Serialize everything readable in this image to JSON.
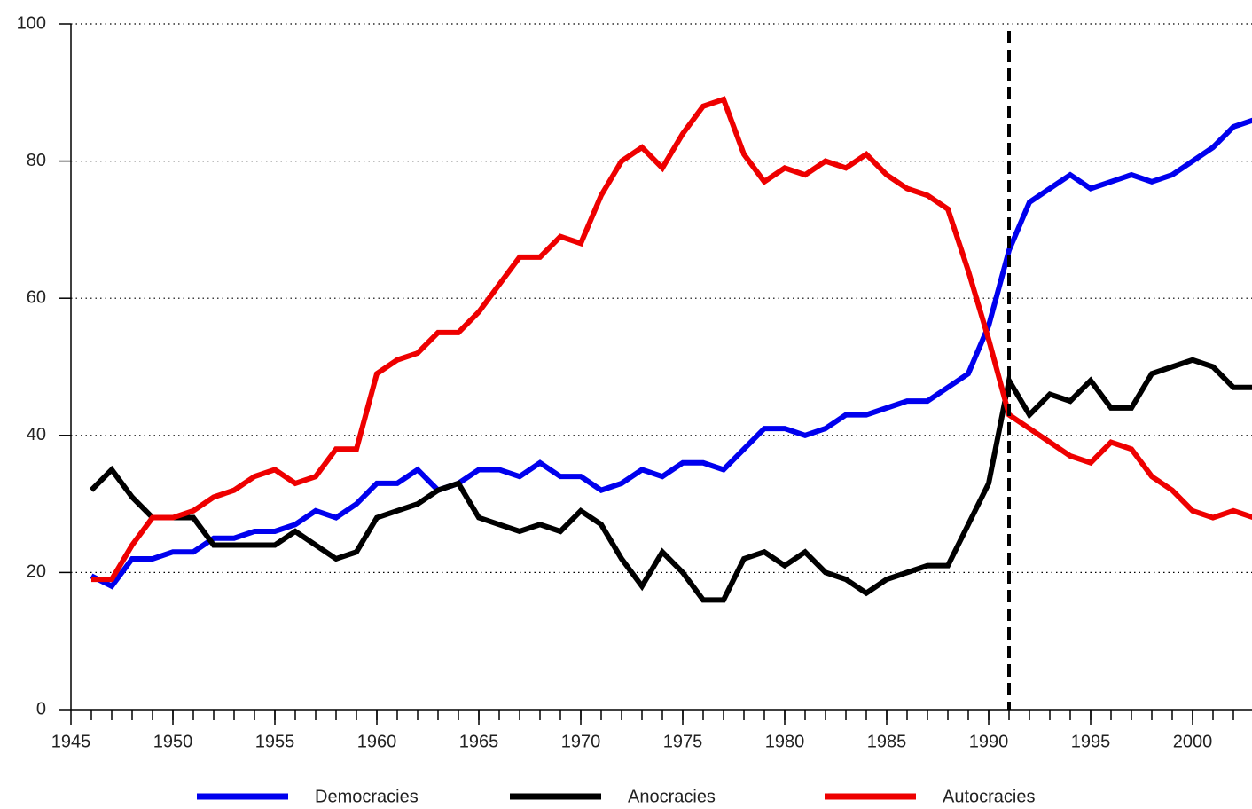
{
  "chart_data": {
    "type": "line",
    "x": [
      1946,
      1947,
      1948,
      1949,
      1950,
      1951,
      1952,
      1953,
      1954,
      1955,
      1956,
      1957,
      1958,
      1959,
      1960,
      1961,
      1962,
      1963,
      1964,
      1965,
      1966,
      1967,
      1968,
      1969,
      1970,
      1971,
      1972,
      1973,
      1974,
      1975,
      1976,
      1977,
      1978,
      1979,
      1980,
      1981,
      1982,
      1983,
      1984,
      1985,
      1986,
      1987,
      1988,
      1989,
      1990,
      1991,
      1992,
      1993,
      1994,
      1995,
      1996,
      1997,
      1998,
      1999,
      2000,
      2001,
      2002,
      2003
    ],
    "series": [
      {
        "name": "Democracies",
        "color": "#0000ee",
        "values": [
          19.5,
          18,
          22,
          22,
          23,
          23,
          25,
          25,
          26,
          26,
          27,
          29,
          28,
          30,
          33,
          33,
          35,
          32,
          33,
          35,
          35,
          34,
          36,
          34,
          34,
          32,
          33,
          35,
          34,
          36,
          36,
          35,
          38,
          41,
          41,
          40,
          41,
          43,
          43,
          44,
          45,
          45,
          47,
          49,
          56,
          67,
          74,
          76,
          78,
          76,
          77,
          78,
          77,
          78,
          80,
          82,
          85,
          86
        ]
      },
      {
        "name": "Anocracies",
        "color": "#000000",
        "values": [
          32,
          35,
          31,
          28,
          28,
          28,
          24,
          24,
          24,
          24,
          26,
          24,
          22,
          23,
          28,
          29,
          30,
          32,
          33,
          28,
          27,
          26,
          27,
          26,
          29,
          27,
          22,
          18,
          23,
          20,
          16,
          16,
          22,
          23,
          21,
          23,
          20,
          19,
          17,
          19,
          20,
          21,
          21,
          27,
          33,
          48,
          43,
          46,
          45,
          48,
          44,
          44,
          49,
          50,
          51,
          50,
          47,
          47
        ]
      },
      {
        "name": "Autocracies",
        "color": "#ee0000",
        "values": [
          19,
          19,
          24,
          28,
          28,
          29,
          31,
          32,
          34,
          35,
          33,
          34,
          38,
          38,
          49,
          51,
          52,
          55,
          55,
          58,
          62,
          66,
          66,
          69,
          68,
          75,
          80,
          82,
          79,
          84,
          88,
          89,
          81,
          77,
          79,
          78,
          80,
          79,
          81,
          78,
          76,
          75,
          73,
          64,
          54,
          43,
          41,
          39,
          37,
          36,
          39,
          38,
          34,
          32,
          29,
          28,
          29,
          28
        ]
      }
    ],
    "vline": 1991,
    "xlim": [
      1945,
      2003
    ],
    "xticks": [
      1945,
      1950,
      1955,
      1960,
      1965,
      1970,
      1975,
      1980,
      1985,
      1990,
      1995,
      2000
    ],
    "ylim": [
      0,
      100
    ],
    "yticks": [
      0,
      20,
      40,
      60,
      80,
      100
    ],
    "grid": true
  }
}
